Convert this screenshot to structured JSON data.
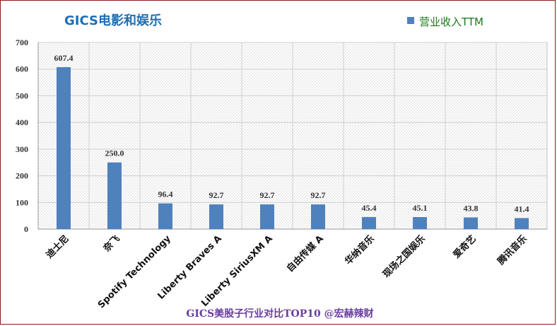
{
  "chart_data": {
    "type": "bar",
    "title": "GICS电影和娱乐",
    "footer": "GICS美股子行业对比TOP10 @宏赫辣财",
    "categories": [
      "迪士尼",
      "奈飞",
      "Spotify Technology",
      "Liberty Braves A",
      "Liberty SiriusXM A",
      "自由传媒 A",
      "华纳音乐",
      "现场之国娱乐",
      "爱奇艺",
      "腾讯音乐"
    ],
    "series": [
      {
        "name": "营业收入TTM",
        "values": [
          607.4,
          250.0,
          96.4,
          92.7,
          92.7,
          92.7,
          45.4,
          45.1,
          43.8,
          41.4
        ],
        "labels": [
          "607.4",
          "250.0",
          "96.4",
          "92.7",
          "92.7",
          "92.7",
          "45.4",
          "45.1",
          "43.8",
          "41.4"
        ]
      }
    ],
    "ylim": [
      0,
      700
    ],
    "yticks": [
      0,
      100,
      200,
      300,
      400,
      500,
      600,
      700
    ],
    "xlabel": "",
    "ylabel": "",
    "grid": true,
    "legend": "top-right",
    "bar_color": "#4f81bd"
  }
}
